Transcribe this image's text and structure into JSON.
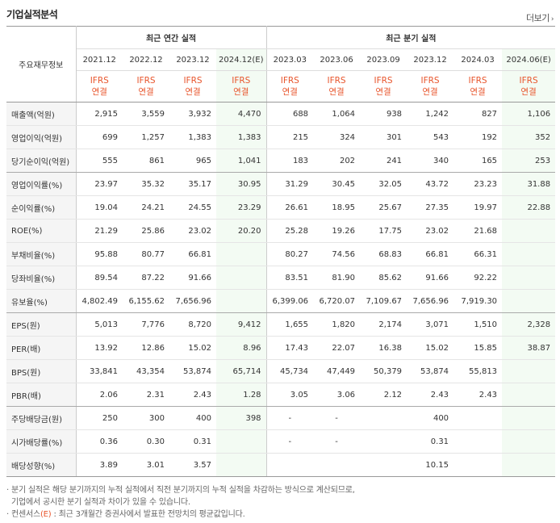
{
  "title": "기업실적분석",
  "more_label": "더보기",
  "header": {
    "corner": "주요재무정보",
    "annual_group": "최근 연간 실적",
    "quarter_group": "최근 분기 실적",
    "periods": [
      "2021.12",
      "2022.12",
      "2023.12",
      "2024.12(E)",
      "2023.03",
      "2023.06",
      "2023.09",
      "2023.12",
      "2024.03",
      "2024.06(E)"
    ],
    "ifrs_top": "IFRS",
    "ifrs_bottom": "연결"
  },
  "rows": [
    {
      "label": "매출액(억원)",
      "values": [
        "2,915",
        "3,559",
        "3,932",
        "4,470",
        "688",
        "1,064",
        "938",
        "1,242",
        "827",
        "1,106"
      ]
    },
    {
      "label": "영업이익(억원)",
      "values": [
        "699",
        "1,257",
        "1,383",
        "1,383",
        "215",
        "324",
        "301",
        "543",
        "192",
        "352"
      ]
    },
    {
      "label": "당기순이익(억원)",
      "values": [
        "555",
        "861",
        "965",
        "1,041",
        "183",
        "202",
        "241",
        "340",
        "165",
        "253"
      ]
    },
    {
      "label": "영업이익률(%)",
      "values": [
        "23.97",
        "35.32",
        "35.17",
        "30.95",
        "31.29",
        "30.45",
        "32.05",
        "43.72",
        "23.23",
        "31.88"
      ]
    },
    {
      "label": "순이익률(%)",
      "values": [
        "19.04",
        "24.21",
        "24.55",
        "23.29",
        "26.61",
        "18.95",
        "25.67",
        "27.35",
        "19.97",
        "22.88"
      ]
    },
    {
      "label": "ROE(%)",
      "values": [
        "21.29",
        "25.86",
        "23.02",
        "20.20",
        "25.28",
        "19.26",
        "17.75",
        "23.02",
        "21.68",
        ""
      ]
    },
    {
      "label": "부채비율(%)",
      "values": [
        "95.88",
        "80.77",
        "66.81",
        "",
        "80.27",
        "74.56",
        "68.83",
        "66.81",
        "66.31",
        ""
      ]
    },
    {
      "label": "당좌비율(%)",
      "values": [
        "89.54",
        "87.22",
        "91.66",
        "",
        "83.51",
        "81.90",
        "85.62",
        "91.66",
        "92.22",
        ""
      ]
    },
    {
      "label": "유보율(%)",
      "values": [
        "4,802.49",
        "6,155.62",
        "7,656.96",
        "",
        "6,399.06",
        "6,720.07",
        "7,109.67",
        "7,656.96",
        "7,919.30",
        ""
      ]
    },
    {
      "label": "EPS(원)",
      "values": [
        "5,013",
        "7,776",
        "8,720",
        "9,412",
        "1,655",
        "1,820",
        "2,174",
        "3,071",
        "1,510",
        "2,328"
      ]
    },
    {
      "label": "PER(배)",
      "values": [
        "13.92",
        "12.86",
        "15.02",
        "8.96",
        "17.43",
        "22.07",
        "16.38",
        "15.02",
        "15.85",
        "38.87"
      ]
    },
    {
      "label": "BPS(원)",
      "values": [
        "33,841",
        "43,354",
        "53,874",
        "65,714",
        "45,734",
        "47,449",
        "50,379",
        "53,874",
        "55,813",
        ""
      ]
    },
    {
      "label": "PBR(배)",
      "values": [
        "2.06",
        "2.31",
        "2.43",
        "1.28",
        "3.05",
        "3.06",
        "2.12",
        "2.43",
        "2.43",
        ""
      ]
    },
    {
      "label": "주당배당금(원)",
      "values": [
        "250",
        "300",
        "400",
        "398",
        "-",
        "-",
        "",
        "400",
        "",
        ""
      ]
    },
    {
      "label": "시가배당률(%)",
      "values": [
        "0.36",
        "0.30",
        "0.31",
        "",
        "-",
        "-",
        "",
        "0.31",
        "",
        ""
      ]
    },
    {
      "label": "배당성향(%)",
      "values": [
        "3.89",
        "3.01",
        "3.57",
        "",
        "",
        "",
        "",
        "10.15",
        "",
        ""
      ]
    }
  ],
  "notes": {
    "line1": "· 분기 실적은 해당 분기까지의 누적 실적에서 직전 분기까지의 누적 실적을 차감하는 방식으로 계산되므로,",
    "line2": "기업에서 공시한 분기 실적과 차이가 있을 수 있습니다.",
    "line3_a": "· 컨센서스",
    "line3_e": "(E)",
    "line3_b": " : 최근 3개월간 증권사에서 발표한 전망치의 평균값입니다."
  },
  "colors": {
    "accent": "#e8552c",
    "estimate_bg": "#f3fbf3",
    "label_bg": "#f5f5f5"
  }
}
